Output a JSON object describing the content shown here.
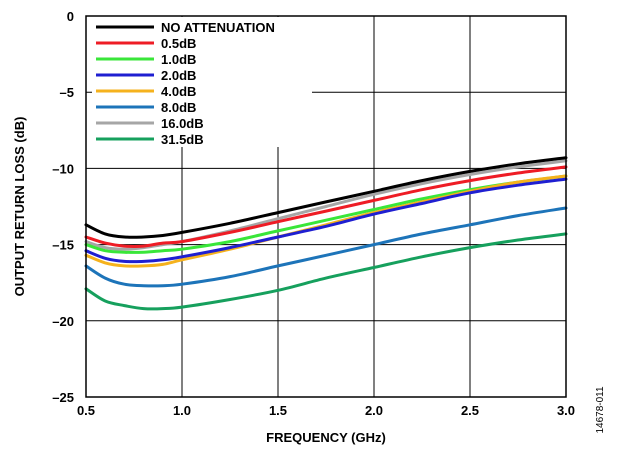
{
  "figure_id": "14678-011",
  "chart_data": {
    "type": "line",
    "title": "",
    "xlabel": "FREQUENCY (GHz)",
    "ylabel": "OUTPUT RETURN LOSS (dB)",
    "xlim": [
      0.5,
      3.0
    ],
    "ylim": [
      -25,
      0
    ],
    "x_ticks": [
      0.5,
      1.0,
      1.5,
      2.0,
      2.5,
      3.0
    ],
    "x_tick_labels": [
      "0.5",
      "1.0",
      "1.5",
      "2.0",
      "2.5",
      "3.0"
    ],
    "y_ticks": [
      0,
      -5,
      -10,
      -15,
      -20,
      -25
    ],
    "y_tick_labels": [
      "0",
      "–5",
      "–10",
      "–15",
      "–20",
      "–25"
    ],
    "grid": true,
    "legend_position": "top-left",
    "x": [
      0.5,
      0.6,
      0.7,
      0.8,
      0.9,
      1.0,
      1.25,
      1.5,
      1.75,
      2.0,
      2.25,
      2.5,
      2.75,
      3.0
    ],
    "series": [
      {
        "name": "NO ATTENUATION",
        "color": "#000000",
        "values": [
          -13.7,
          -14.3,
          -14.5,
          -14.5,
          -14.4,
          -14.2,
          -13.6,
          -12.9,
          -12.2,
          -11.5,
          -10.8,
          -10.2,
          -9.7,
          -9.3
        ]
      },
      {
        "name": "0.5dB",
        "color": "#ee1c25",
        "values": [
          -14.5,
          -14.9,
          -15.1,
          -15.1,
          -14.9,
          -14.8,
          -14.2,
          -13.5,
          -12.8,
          -12.1,
          -11.4,
          -10.8,
          -10.3,
          -9.9
        ]
      },
      {
        "name": "1.0dB",
        "color": "#39e639",
        "values": [
          -15.0,
          -15.4,
          -15.5,
          -15.5,
          -15.4,
          -15.3,
          -14.8,
          -14.1,
          -13.4,
          -12.7,
          -12.0,
          -11.4,
          -10.9,
          -10.5
        ]
      },
      {
        "name": "2.0dB",
        "color": "#1f1fd1",
        "values": [
          -15.4,
          -15.9,
          -16.1,
          -16.1,
          -16.0,
          -15.8,
          -15.2,
          -14.5,
          -13.8,
          -13.0,
          -12.3,
          -11.6,
          -11.1,
          -10.7
        ]
      },
      {
        "name": "4.0dB",
        "color": "#f5b21d",
        "values": [
          -15.7,
          -16.2,
          -16.4,
          -16.4,
          -16.3,
          -16.0,
          -15.3,
          -14.5,
          -13.7,
          -12.9,
          -12.2,
          -11.5,
          -10.9,
          -10.5
        ]
      },
      {
        "name": "8.0dB",
        "color": "#1d74b9",
        "values": [
          -16.4,
          -17.2,
          -17.6,
          -17.7,
          -17.7,
          -17.6,
          -17.1,
          -16.4,
          -15.7,
          -15.0,
          -14.3,
          -13.7,
          -13.1,
          -12.6
        ]
      },
      {
        "name": "16.0dB",
        "color": "#a6a6a6",
        "values": [
          -14.8,
          -15.2,
          -15.3,
          -15.2,
          -15.0,
          -14.8,
          -14.1,
          -13.3,
          -12.5,
          -11.7,
          -11.0,
          -10.4,
          -9.9,
          -9.5
        ]
      },
      {
        "name": "31.5dB",
        "color": "#16a05d",
        "values": [
          -17.9,
          -18.7,
          -19.0,
          -19.2,
          -19.2,
          -19.1,
          -18.6,
          -18.0,
          -17.2,
          -16.5,
          -15.8,
          -15.2,
          -14.7,
          -14.3
        ]
      }
    ]
  }
}
